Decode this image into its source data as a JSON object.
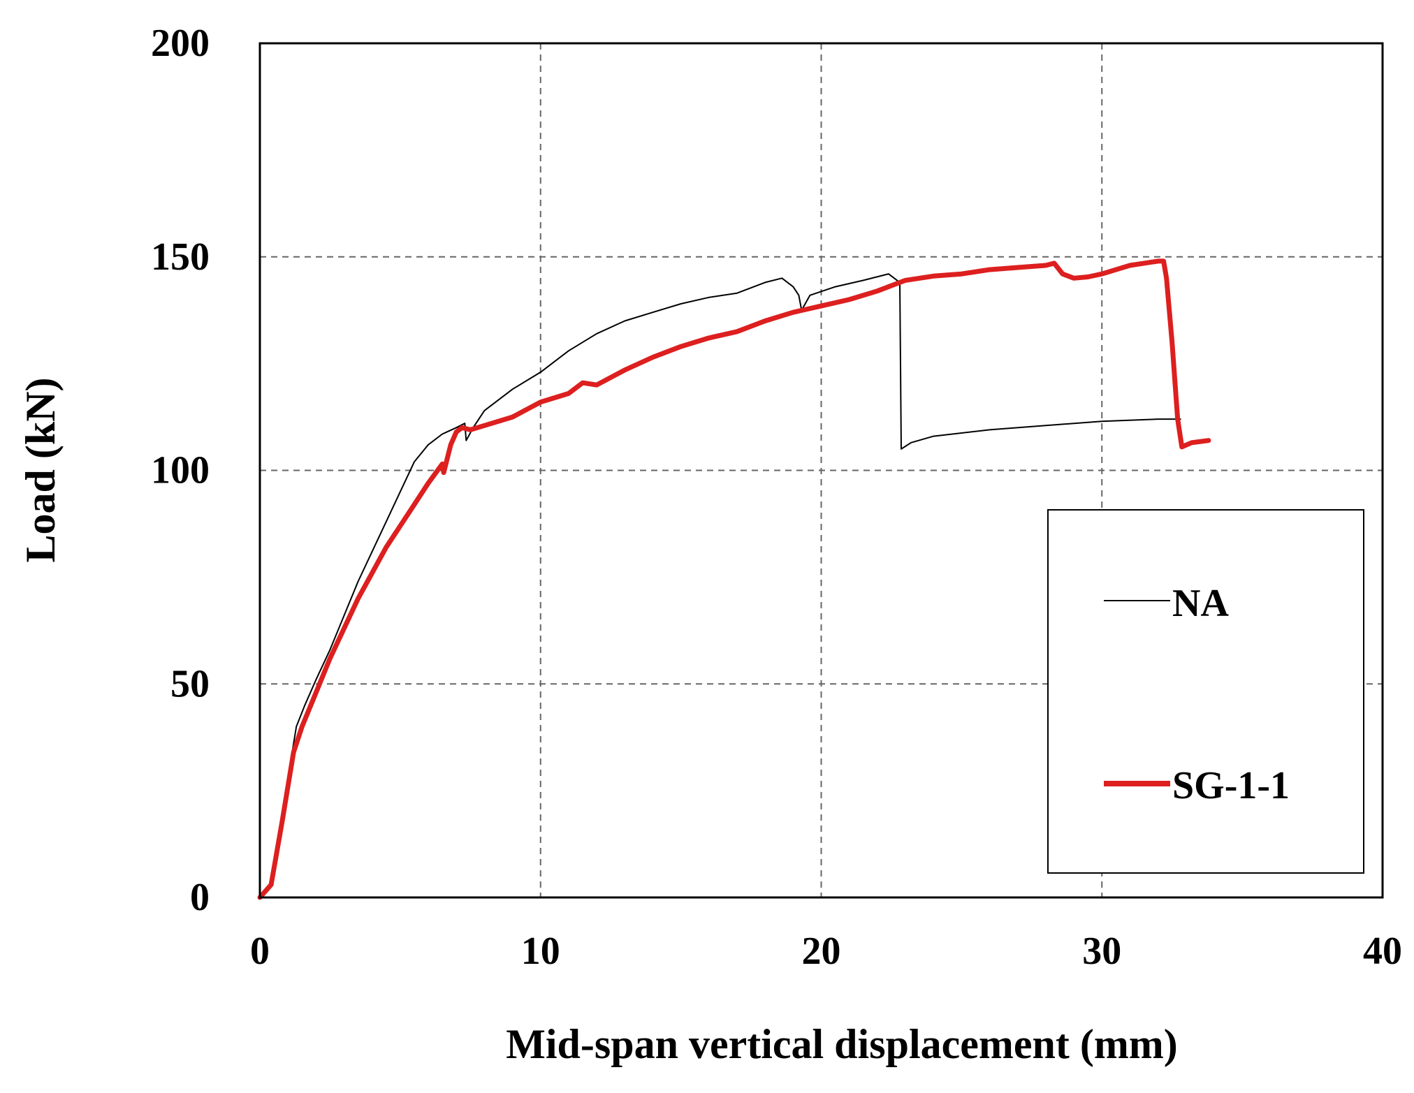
{
  "chart_data": {
    "type": "line",
    "title": "",
    "xlabel": "Mid-span vertical displacement (mm)",
    "ylabel": "Load (kN)",
    "xlim": [
      0,
      40
    ],
    "ylim": [
      0,
      200
    ],
    "xticks": [
      0,
      10,
      20,
      30,
      40
    ],
    "yticks": [
      0,
      50,
      100,
      150,
      200
    ],
    "xtick_labels": [
      "0",
      "10",
      "20",
      "30",
      "40"
    ],
    "ytick_labels": [
      "0",
      "50",
      "100",
      "150",
      "200"
    ],
    "grid": true,
    "legend_position": "lower-right",
    "series": [
      {
        "name": "NA",
        "color": "#000000",
        "style": "thin",
        "points": [
          [
            0,
            0
          ],
          [
            0.3,
            2
          ],
          [
            0.6,
            10
          ],
          [
            1.0,
            28
          ],
          [
            1.3,
            40
          ],
          [
            1.6,
            45
          ],
          [
            2.0,
            51
          ],
          [
            2.5,
            58
          ],
          [
            3.0,
            66
          ],
          [
            3.5,
            74
          ],
          [
            4.0,
            81
          ],
          [
            4.5,
            88
          ],
          [
            5.0,
            95
          ],
          [
            5.5,
            102
          ],
          [
            6.0,
            106
          ],
          [
            6.5,
            108.5
          ],
          [
            7.0,
            110
          ],
          [
            7.3,
            111
          ],
          [
            7.35,
            107
          ],
          [
            7.6,
            110
          ],
          [
            8.0,
            114
          ],
          [
            9.0,
            119
          ],
          [
            10.0,
            123
          ],
          [
            11.0,
            128
          ],
          [
            12.0,
            132
          ],
          [
            13.0,
            135
          ],
          [
            14.0,
            137
          ],
          [
            15.0,
            139
          ],
          [
            16.0,
            140.5
          ],
          [
            17.0,
            141.5
          ],
          [
            18.0,
            144
          ],
          [
            18.6,
            145
          ],
          [
            19.0,
            143
          ],
          [
            19.2,
            141
          ],
          [
            19.3,
            137.5
          ],
          [
            19.6,
            141
          ],
          [
            20.5,
            143
          ],
          [
            21.5,
            144.5
          ],
          [
            22.4,
            146
          ],
          [
            22.8,
            144
          ],
          [
            22.85,
            105
          ],
          [
            23.2,
            106.5
          ],
          [
            24.0,
            108
          ],
          [
            26.0,
            109.5
          ],
          [
            28.0,
            110.5
          ],
          [
            30.0,
            111.5
          ],
          [
            32.0,
            112
          ],
          [
            32.8,
            112
          ]
        ]
      },
      {
        "name": "SG-1-1",
        "color": "#dd1f1f",
        "style": "thick",
        "points": [
          [
            0,
            0
          ],
          [
            0.4,
            3
          ],
          [
            0.8,
            18
          ],
          [
            1.2,
            34
          ],
          [
            1.5,
            40
          ],
          [
            2.0,
            48
          ],
          [
            2.5,
            56
          ],
          [
            3.0,
            63
          ],
          [
            3.5,
            70
          ],
          [
            4.0,
            76
          ],
          [
            4.5,
            82
          ],
          [
            5.0,
            87
          ],
          [
            5.5,
            92
          ],
          [
            6.0,
            97
          ],
          [
            6.5,
            101.5
          ],
          [
            6.55,
            99.5
          ],
          [
            6.8,
            106
          ],
          [
            7.0,
            109
          ],
          [
            7.2,
            110
          ],
          [
            7.5,
            109.5
          ],
          [
            8.0,
            110.5
          ],
          [
            9.0,
            112.5
          ],
          [
            10.0,
            116
          ],
          [
            11.0,
            118
          ],
          [
            11.5,
            120.5
          ],
          [
            12.0,
            120
          ],
          [
            13.0,
            123.5
          ],
          [
            14.0,
            126.5
          ],
          [
            15.0,
            129
          ],
          [
            16.0,
            131
          ],
          [
            17.0,
            132.5
          ],
          [
            18.0,
            135
          ],
          [
            19.0,
            137
          ],
          [
            20.0,
            138.5
          ],
          [
            21.0,
            140
          ],
          [
            22.0,
            142
          ],
          [
            23.0,
            144.5
          ],
          [
            24.0,
            145.5
          ],
          [
            25.0,
            146
          ],
          [
            26.0,
            147
          ],
          [
            27.0,
            147.5
          ],
          [
            28.0,
            148
          ],
          [
            28.3,
            148.5
          ],
          [
            28.6,
            146
          ],
          [
            29.0,
            145
          ],
          [
            29.5,
            145.3
          ],
          [
            30.0,
            146
          ],
          [
            31.0,
            148
          ],
          [
            32.0,
            149
          ],
          [
            32.2,
            149
          ],
          [
            32.3,
            145
          ],
          [
            32.5,
            130
          ],
          [
            32.7,
            112
          ],
          [
            32.85,
            105.5
          ],
          [
            33.2,
            106.5
          ],
          [
            33.8,
            107
          ]
        ]
      }
    ]
  },
  "colors": {
    "grid": "#666666",
    "axis": "#000000",
    "background": "#ffffff"
  }
}
